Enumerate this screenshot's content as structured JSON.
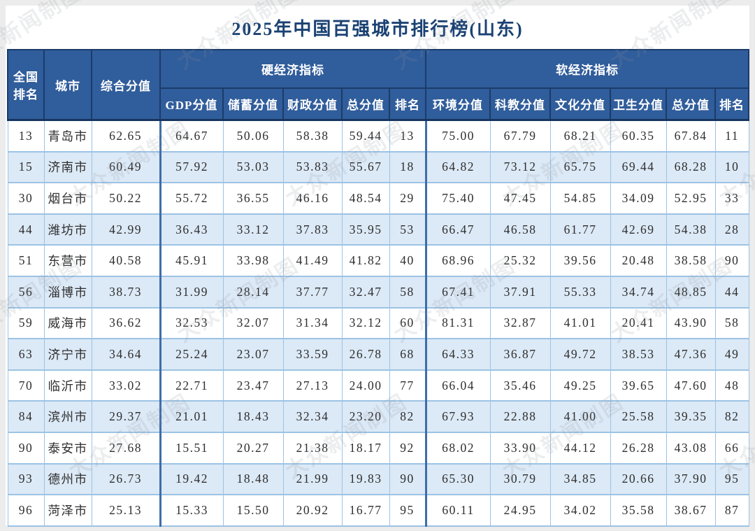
{
  "title": "2025年中国百强城市排行榜(山东)",
  "watermark": "大众新闻制图",
  "colors": {
    "header_bg": "#305d9b",
    "header_divider": "#1b3c6b",
    "alt_row_bg": "#dce9f6",
    "cell_border": "#9cc3e4",
    "group_border": "#3e6da9",
    "title_color": "#1a4173",
    "text_color": "#2e2e2e"
  },
  "chart_data": {
    "type": "table",
    "title": "2025年中国百强城市排行榜(山东)",
    "header": {
      "col1": "全国排名",
      "col2": "城市",
      "col3": "综合分值",
      "group_hard": "硬经济指标",
      "group_soft": "软经济指标",
      "sub": [
        "GDP分值",
        "储蓄分值",
        "财政分值",
        "总分值",
        "排名",
        "环境分值",
        "科教分值",
        "文化分值",
        "卫生分值",
        "总分值",
        "排名"
      ]
    },
    "columns": [
      "全国排名",
      "城市",
      "综合分值",
      "GDP分值",
      "储蓄分值",
      "财政分值",
      "硬总分值",
      "硬排名",
      "环境分值",
      "科教分值",
      "文化分值",
      "卫生分值",
      "软总分值",
      "软排名"
    ],
    "rows": [
      [
        "13",
        "青岛市",
        "62.65",
        "64.67",
        "50.06",
        "58.38",
        "59.44",
        "13",
        "75.00",
        "67.79",
        "68.21",
        "60.35",
        "67.84",
        "11"
      ],
      [
        "15",
        "济南市",
        "60.49",
        "57.92",
        "53.03",
        "53.83",
        "55.67",
        "18",
        "64.82",
        "73.12",
        "65.75",
        "69.44",
        "68.28",
        "10"
      ],
      [
        "30",
        "烟台市",
        "50.22",
        "55.72",
        "36.55",
        "46.16",
        "48.54",
        "29",
        "75.40",
        "47.45",
        "54.85",
        "34.09",
        "52.95",
        "33"
      ],
      [
        "44",
        "潍坊市",
        "42.99",
        "36.43",
        "33.12",
        "37.83",
        "35.95",
        "53",
        "66.47",
        "46.58",
        "61.77",
        "42.69",
        "54.38",
        "28"
      ],
      [
        "51",
        "东营市",
        "40.58",
        "45.91",
        "33.98",
        "41.49",
        "41.82",
        "40",
        "68.96",
        "25.32",
        "39.56",
        "20.48",
        "38.58",
        "90"
      ],
      [
        "56",
        "淄博市",
        "38.73",
        "31.99",
        "28.14",
        "37.77",
        "32.47",
        "58",
        "67.41",
        "37.91",
        "55.33",
        "34.74",
        "48.85",
        "44"
      ],
      [
        "59",
        "威海市",
        "36.62",
        "32.53",
        "32.07",
        "31.34",
        "32.12",
        "60",
        "81.31",
        "32.87",
        "41.01",
        "20.41",
        "43.90",
        "58"
      ],
      [
        "63",
        "济宁市",
        "34.64",
        "25.24",
        "23.07",
        "33.59",
        "26.78",
        "68",
        "64.33",
        "36.87",
        "49.72",
        "38.53",
        "47.36",
        "49"
      ],
      [
        "70",
        "临沂市",
        "33.02",
        "22.71",
        "23.47",
        "27.13",
        "24.00",
        "77",
        "66.04",
        "35.46",
        "49.25",
        "39.65",
        "47.60",
        "48"
      ],
      [
        "84",
        "滨州市",
        "29.37",
        "21.01",
        "18.43",
        "32.34",
        "23.20",
        "82",
        "67.93",
        "22.88",
        "41.00",
        "25.58",
        "39.35",
        "82"
      ],
      [
        "90",
        "泰安市",
        "27.68",
        "15.51",
        "20.27",
        "21.38",
        "18.17",
        "92",
        "68.02",
        "33.90",
        "44.12",
        "26.28",
        "43.08",
        "66"
      ],
      [
        "93",
        "德州市",
        "26.73",
        "19.42",
        "18.48",
        "21.99",
        "19.83",
        "90",
        "65.30",
        "30.79",
        "34.85",
        "20.66",
        "37.90",
        "95"
      ],
      [
        "96",
        "菏泽市",
        "25.13",
        "15.33",
        "15.50",
        "20.92",
        "16.77",
        "95",
        "60.11",
        "24.95",
        "34.02",
        "35.58",
        "38.67",
        "87"
      ]
    ]
  }
}
